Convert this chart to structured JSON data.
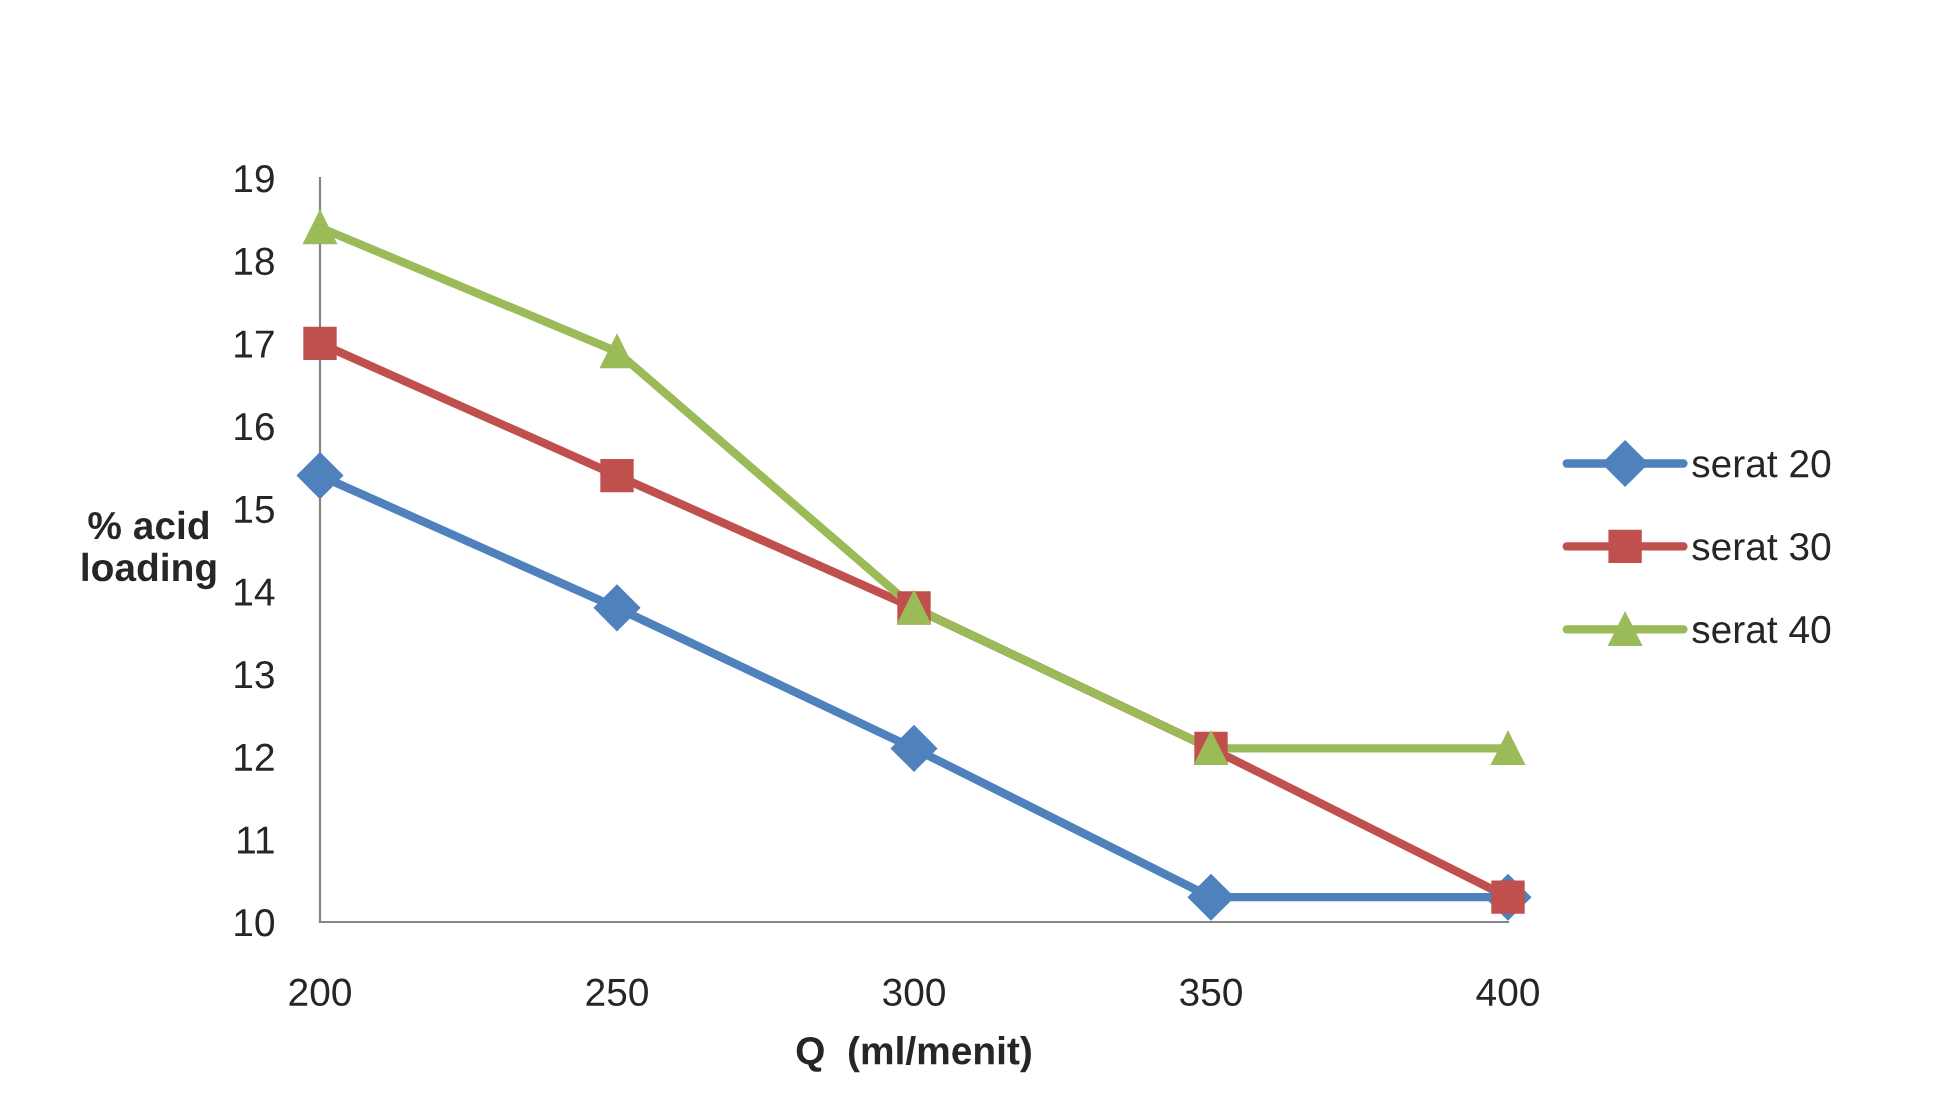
{
  "chart_data": {
    "type": "line",
    "xlabel": "Q  (ml/menit)",
    "ylabel": "% acid\nloading",
    "x": [
      200,
      250,
      300,
      350,
      400
    ],
    "series": [
      {
        "name": "serat 20",
        "color": "#4f81bd",
        "marker": "diamond",
        "values": [
          15.4,
          13.8,
          12.1,
          10.3,
          10.3
        ]
      },
      {
        "name": "serat 30",
        "color": "#c0504d",
        "marker": "square",
        "values": [
          17.0,
          15.4,
          13.8,
          12.1,
          10.3
        ]
      },
      {
        "name": "serat 40",
        "color": "#9bbb59",
        "marker": "triangle",
        "values": [
          18.4,
          16.9,
          13.8,
          12.1,
          12.1
        ]
      }
    ],
    "xlim": [
      200,
      400
    ],
    "xticks": [
      200,
      250,
      300,
      350,
      400
    ],
    "ylim": [
      10,
      19
    ],
    "yticks": [
      10,
      11,
      12,
      13,
      14,
      15,
      16,
      17,
      18,
      19
    ],
    "grid": false,
    "legend": "right"
  }
}
